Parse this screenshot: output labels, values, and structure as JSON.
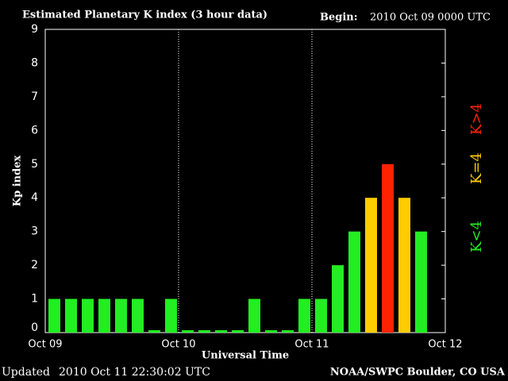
{
  "chart_data": {
    "type": "bar",
    "title": "Estimated Planetary K index (3 hour data)",
    "begin_label": "Begin:",
    "begin": "2010 Oct 09 0000 UTC",
    "updated_label": "Updated",
    "updated": "2010 Oct 11 22:30:02 UTC",
    "credit": "NOAA/SWPC Boulder, CO USA",
    "xlabel": "Universal Time",
    "ylabel": "Kp index",
    "values": [
      1,
      1,
      1,
      1,
      1,
      1,
      0,
      1,
      0,
      0,
      0,
      0,
      1,
      0,
      0,
      1,
      1,
      2,
      3,
      4,
      5,
      4,
      3,
      null
    ],
    "bar_colors": [
      "#22ee22",
      "#22ee22",
      "#22ee22",
      "#22ee22",
      "#22ee22",
      "#22ee22",
      "#22ee22",
      "#22ee22",
      "#22ee22",
      "#22ee22",
      "#22ee22",
      "#22ee22",
      "#22ee22",
      "#22ee22",
      "#22ee22",
      "#22ee22",
      "#22ee22",
      "#22ee22",
      "#22ee22",
      "#ffcc00",
      "#ff2200",
      "#ffcc00",
      "#22ee22",
      null
    ],
    "xlim": [
      0,
      24
    ],
    "xticks": [
      {
        "value": 0,
        "label": "Oct 09"
      },
      {
        "value": 8,
        "label": "Oct 10"
      },
      {
        "value": 16,
        "label": "Oct 11"
      },
      {
        "value": 24,
        "label": "Oct 12"
      }
    ],
    "ylim": [
      0,
      9
    ],
    "yticks": [
      0,
      1,
      2,
      3,
      4,
      5,
      6,
      7,
      8,
      9
    ],
    "legend": [
      {
        "label": "K<4",
        "color": "#22ee22"
      },
      {
        "label": "K=4",
        "color": "#ffcc00"
      },
      {
        "label": "K>4",
        "color": "#ff2200"
      }
    ]
  }
}
